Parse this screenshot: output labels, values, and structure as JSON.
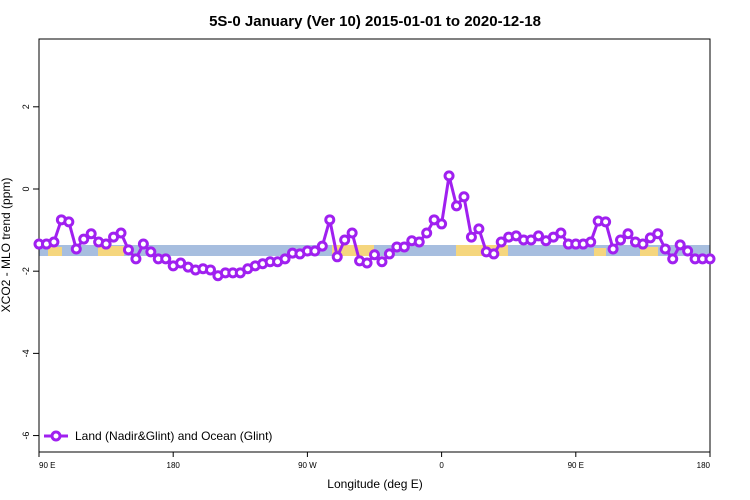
{
  "chart_data": {
    "type": "line",
    "title": "5S-0 January (Ver 10)   2015-01-01 to 2020-12-18",
    "x_label": "Longitude (deg E)",
    "y_label": "XCO2 - MLO trend (ppm)",
    "x": [
      90,
      95,
      100,
      105,
      110,
      115,
      120,
      125,
      130,
      135,
      140,
      145,
      150,
      155,
      160,
      165,
      170,
      175,
      180,
      185,
      190,
      195,
      200,
      205,
      210,
      215,
      220,
      225,
      230,
      235,
      240,
      245,
      250,
      255,
      260,
      265,
      270,
      275,
      280,
      285,
      290,
      295,
      300,
      305,
      310,
      315,
      320,
      325,
      330,
      335,
      340,
      345,
      350,
      355,
      360,
      365,
      370,
      375,
      380,
      385,
      390,
      395,
      400,
      405,
      410,
      415,
      420,
      425,
      430,
      435,
      440,
      445,
      450,
      455,
      460,
      465,
      470,
      475,
      480,
      485,
      490,
      495,
      500,
      505,
      510,
      515,
      520,
      525,
      530,
      535,
      540
    ],
    "series": [
      {
        "name": "Land (Nadir&Glint) and Ocean (Glint)",
        "color": "#a020f0",
        "values": [
          -1.34,
          -1.34,
          -1.29,
          -0.75,
          -0.8,
          -1.46,
          -1.22,
          -1.09,
          -1.29,
          -1.34,
          -1.17,
          -1.07,
          -1.48,
          -1.7,
          -1.34,
          -1.53,
          -1.7,
          -1.7,
          -1.87,
          -1.8,
          -1.9,
          -1.97,
          -1.94,
          -1.97,
          -2.11,
          -2.04,
          -2.04,
          -2.04,
          -1.94,
          -1.87,
          -1.82,
          -1.77,
          -1.77,
          -1.7,
          -1.56,
          -1.58,
          -1.51,
          -1.51,
          -1.39,
          -0.75,
          -1.65,
          -1.24,
          -1.07,
          -1.75,
          -1.8,
          -1.6,
          -1.77,
          -1.58,
          -1.41,
          -1.41,
          -1.26,
          -1.29,
          -1.07,
          -0.75,
          -0.85,
          0.32,
          -0.41,
          -0.19,
          -1.17,
          -0.97,
          -1.53,
          -1.58,
          -1.29,
          -1.17,
          -1.14,
          -1.24,
          -1.24,
          -1.14,
          -1.26,
          -1.17,
          -1.07,
          -1.34,
          -1.34,
          -1.34,
          -1.29,
          -0.78,
          -0.8,
          -1.46,
          -1.24,
          -1.09,
          -1.29,
          -1.34,
          -1.19,
          -1.09,
          -1.46,
          -1.7,
          -1.36,
          -1.51,
          -1.7,
          -1.7,
          -1.7
        ]
      }
    ],
    "xlim": [
      90,
      540
    ],
    "xticks": [
      {
        "value": 90,
        "label": "90 E"
      },
      180,
      {
        "value": 270,
        "label": "90 W"
      },
      {
        "value": 360,
        "label": "0"
      },
      {
        "value": 450,
        "label": "90 E"
      },
      180
    ],
    "ylim": [
      -6.4,
      3.65
    ],
    "yticks": [
      2,
      0,
      -2,
      -4,
      -6
    ],
    "legend": "bottom-left"
  }
}
